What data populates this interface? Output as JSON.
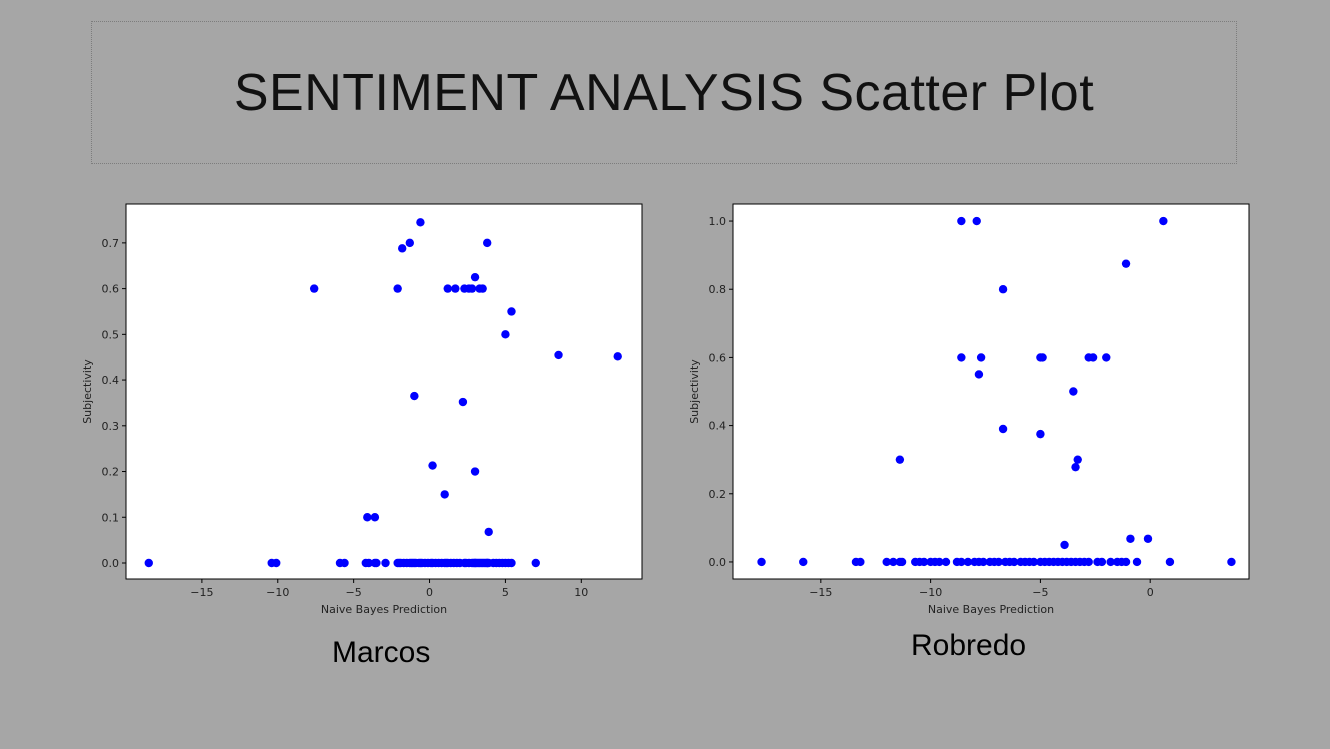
{
  "slide": {
    "title": "SENTIMENT ANALYSIS Scatter Plot"
  },
  "colors": {
    "background": "#a6a6a6",
    "point": "#0000ff",
    "plot_bg": "#ffffff"
  },
  "chart_data": [
    {
      "type": "scatter",
      "caption": "Marcos",
      "xlabel": "Naive Bayes Prediction",
      "ylabel": "Subjectivity",
      "xlim": [
        -20,
        14
      ],
      "ylim": [
        -0.035,
        0.785
      ],
      "xticks": [
        -15,
        -10,
        -5,
        0,
        5,
        10
      ],
      "yticks": [
        0.0,
        0.1,
        0.2,
        0.3,
        0.4,
        0.5,
        0.6,
        0.7
      ],
      "x": [
        -18.5,
        -10.4,
        -10.1,
        -7.6,
        -5.9,
        -5.6,
        -4.2,
        -4.0,
        -3.6,
        -3.5,
        -2.9,
        -2.1,
        -2.0,
        -1.9,
        -1.7,
        -1.5,
        -1.3,
        -1.2,
        -1.1,
        -1.0,
        -0.9,
        -0.7,
        -0.6,
        -0.5,
        -0.3,
        -0.1,
        0.1,
        0.2,
        0.4,
        0.6,
        0.8,
        1.0,
        1.1,
        1.2,
        1.4,
        1.6,
        1.8,
        2.0,
        2.3,
        2.4,
        2.6,
        2.8,
        2.9,
        3.0,
        3.0,
        3.1,
        3.2,
        3.3,
        3.4,
        3.5,
        3.6,
        3.7,
        3.8,
        3.8,
        3.9,
        4.2,
        4.4,
        4.6,
        4.8,
        5.0,
        5.0,
        5.2,
        5.4,
        7.0,
        8.5,
        12.4,
        -1.8,
        -1.3,
        -0.6,
        3.8,
        -2.1,
        1.2,
        1.7,
        2.3,
        2.6,
        2.8,
        3.0,
        3.3,
        3.5,
        5.4,
        2.2,
        -1.0,
        0.2,
        3.0,
        1.0,
        -4.1,
        -3.6,
        3.9
      ],
      "y": [
        0.0,
        0.0,
        0.0,
        0.6,
        0.0,
        0.0,
        0.0,
        0.0,
        0.0,
        0.0,
        0.0,
        0.0,
        0.0,
        0.0,
        0.0,
        0.0,
        0.0,
        0.0,
        0.0,
        0.0,
        0.0,
        0.0,
        0.0,
        0.0,
        0.0,
        0.0,
        0.0,
        0.0,
        0.0,
        0.0,
        0.0,
        0.0,
        0.0,
        0.0,
        0.0,
        0.0,
        0.0,
        0.0,
        0.0,
        0.0,
        0.0,
        0.0,
        0.0,
        0.0,
        0.0,
        0.0,
        0.0,
        0.0,
        0.0,
        0.0,
        0.0,
        0.0,
        0.0,
        0.0,
        0.0,
        0.0,
        0.0,
        0.0,
        0.0,
        0.0,
        0.5,
        0.0,
        0.0,
        0.0,
        0.455,
        0.452,
        0.688,
        0.7,
        0.745,
        0.7,
        0.6,
        0.6,
        0.6,
        0.6,
        0.6,
        0.6,
        0.625,
        0.6,
        0.6,
        0.55,
        0.352,
        0.365,
        0.213,
        0.2,
        0.15,
        0.1,
        0.1,
        0.068
      ]
    },
    {
      "type": "scatter",
      "caption": "Robredo",
      "xlabel": "Naive Bayes Prediction",
      "ylabel": "Subjectivity",
      "xlim": [
        -19,
        4.5
      ],
      "ylim": [
        -0.05,
        1.05
      ],
      "xticks": [
        -15,
        -10,
        -5,
        0
      ],
      "yticks": [
        0.0,
        0.2,
        0.4,
        0.6,
        0.8,
        1.0
      ],
      "x": [
        -17.7,
        -15.8,
        -13.4,
        -13.2,
        -12.0,
        -11.7,
        -11.4,
        -11.3,
        -10.7,
        -10.5,
        -10.3,
        -10.0,
        -9.8,
        -9.6,
        -9.3,
        -8.8,
        -8.6,
        -8.3,
        -8.0,
        -7.8,
        -7.6,
        -7.3,
        -7.1,
        -6.9,
        -6.6,
        -6.4,
        -6.2,
        -5.9,
        -5.7,
        -5.5,
        -5.3,
        -5.0,
        -4.8,
        -4.6,
        -4.4,
        -4.2,
        -4.0,
        -3.8,
        -3.6,
        -3.4,
        -3.2,
        -3.0,
        -2.8,
        -2.4,
        -2.2,
        -1.8,
        -1.5,
        -1.3,
        -1.1,
        -0.6,
        0.9,
        3.7,
        -8.6,
        -7.9,
        0.6,
        -1.1,
        -6.7,
        -8.6,
        -7.7,
        -5.0,
        -4.9,
        -2.8,
        -2.6,
        -2.0,
        -7.8,
        -3.5,
        -6.7,
        -5.0,
        -3.3,
        -3.4,
        -11.4,
        -0.9,
        -0.1,
        -3.9
      ],
      "y": [
        0.0,
        0.0,
        0.0,
        0.0,
        0.0,
        0.0,
        0.0,
        0.0,
        0.0,
        0.0,
        0.0,
        0.0,
        0.0,
        0.0,
        0.0,
        0.0,
        0.0,
        0.0,
        0.0,
        0.0,
        0.0,
        0.0,
        0.0,
        0.0,
        0.0,
        0.0,
        0.0,
        0.0,
        0.0,
        0.0,
        0.0,
        0.0,
        0.0,
        0.0,
        0.0,
        0.0,
        0.0,
        0.0,
        0.0,
        0.0,
        0.0,
        0.0,
        0.0,
        0.0,
        0.0,
        0.0,
        0.0,
        0.0,
        0.0,
        0.0,
        0.0,
        0.0,
        1.0,
        1.0,
        1.0,
        0.875,
        0.8,
        0.6,
        0.6,
        0.6,
        0.6,
        0.6,
        0.6,
        0.6,
        0.55,
        0.5,
        0.39,
        0.375,
        0.3,
        0.278,
        0.3,
        0.068,
        0.068,
        0.05
      ]
    }
  ]
}
